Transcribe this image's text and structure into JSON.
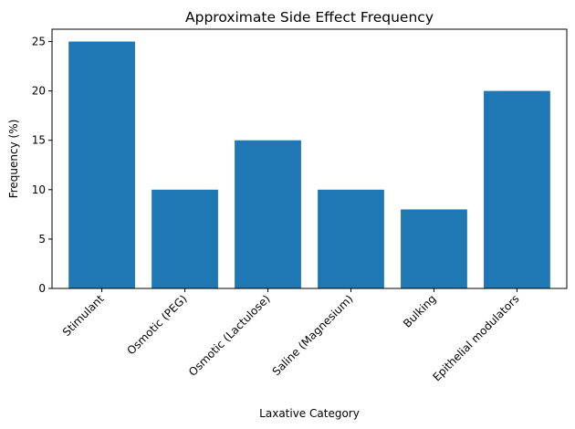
{
  "chart_data": {
    "type": "bar",
    "title": "Approximate Side Effect Frequency",
    "xlabel": "Laxative Category",
    "ylabel": "Frequency (%)",
    "categories": [
      "Stimulant",
      "Osmotic (PEG)",
      "Osmotic (Lactulose)",
      "Saline (Magnesium)",
      "Bulking",
      "Epithelial modulators"
    ],
    "values": [
      25,
      10,
      15,
      10,
      8,
      20
    ],
    "ylim": [
      0,
      26.25
    ],
    "yticks": [
      0,
      5,
      10,
      15,
      20,
      25
    ],
    "grid": false,
    "bar_color": "#1f77b4"
  }
}
